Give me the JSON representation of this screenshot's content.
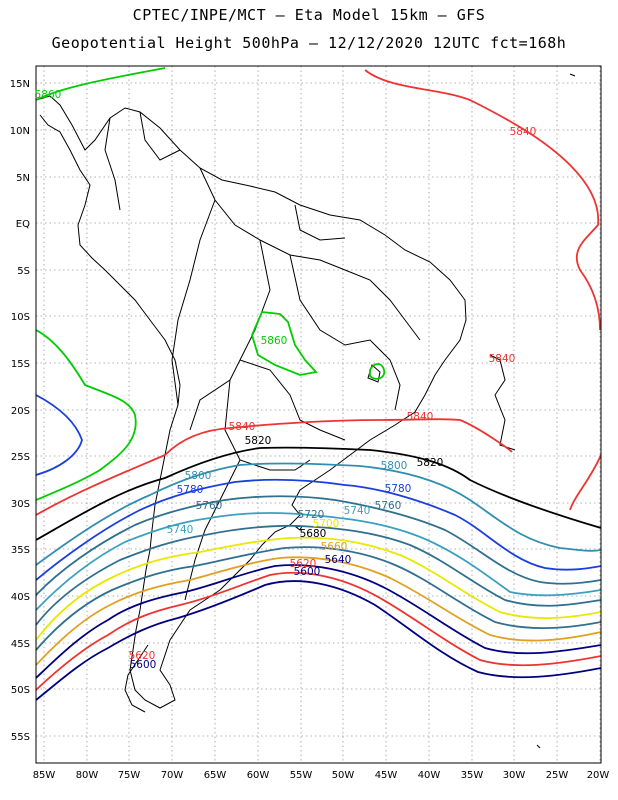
{
  "title": {
    "line1": "CPTEC/INPE/MCT –  Eta Model 15km – GFS",
    "line2": "Geopotential Height 500hPa – 12/12/2020 12UTC fct=168h"
  },
  "axes": {
    "lat_ticks": [
      "15N",
      "10N",
      "5N",
      "EQ",
      "5S",
      "10S",
      "15S",
      "20S",
      "25S",
      "30S",
      "35S",
      "40S",
      "45S",
      "50S",
      "55S"
    ],
    "lon_ticks": [
      "85W",
      "80W",
      "75W",
      "70W",
      "65W",
      "60W",
      "55W",
      "50W",
      "45W",
      "40W",
      "35W",
      "30W",
      "25W",
      "20W"
    ]
  },
  "contour_labels": [
    {
      "text": "5860",
      "color": "#00cc00"
    },
    {
      "text": "5860",
      "color": "#00cc00"
    },
    {
      "text": "5840",
      "color": "#ee3333"
    },
    {
      "text": "5840",
      "color": "#ee3333"
    },
    {
      "text": "5840",
      "color": "#ee3333"
    },
    {
      "text": "5840",
      "color": "#ee3333"
    },
    {
      "text": "5820",
      "color": "#000000"
    },
    {
      "text": "5820",
      "color": "#000000"
    },
    {
      "text": "5800",
      "color": "#2f8fb0"
    },
    {
      "text": "5800",
      "color": "#2f8fb0"
    },
    {
      "text": "5780",
      "color": "#1a3fe0"
    },
    {
      "text": "5780",
      "color": "#1a3fe0"
    },
    {
      "text": "5760",
      "color": "#2f6f8f"
    },
    {
      "text": "5760",
      "color": "#2f6f8f"
    },
    {
      "text": "5740",
      "color": "#3aa0c0"
    },
    {
      "text": "5740",
      "color": "#3aa0c0"
    },
    {
      "text": "5720",
      "color": "#2f6f8f"
    },
    {
      "text": "5700",
      "color": "#e8e800"
    },
    {
      "text": "5680",
      "color": "#000000"
    },
    {
      "text": "5660",
      "color": "#e0a020"
    },
    {
      "text": "5640",
      "color": "#000080"
    },
    {
      "text": "5620",
      "color": "#ee3333"
    },
    {
      "text": "5600",
      "color": "#000080"
    },
    {
      "text": "5620",
      "color": "#ee3333"
    },
    {
      "text": "5600",
      "color": "#000080"
    }
  ]
}
